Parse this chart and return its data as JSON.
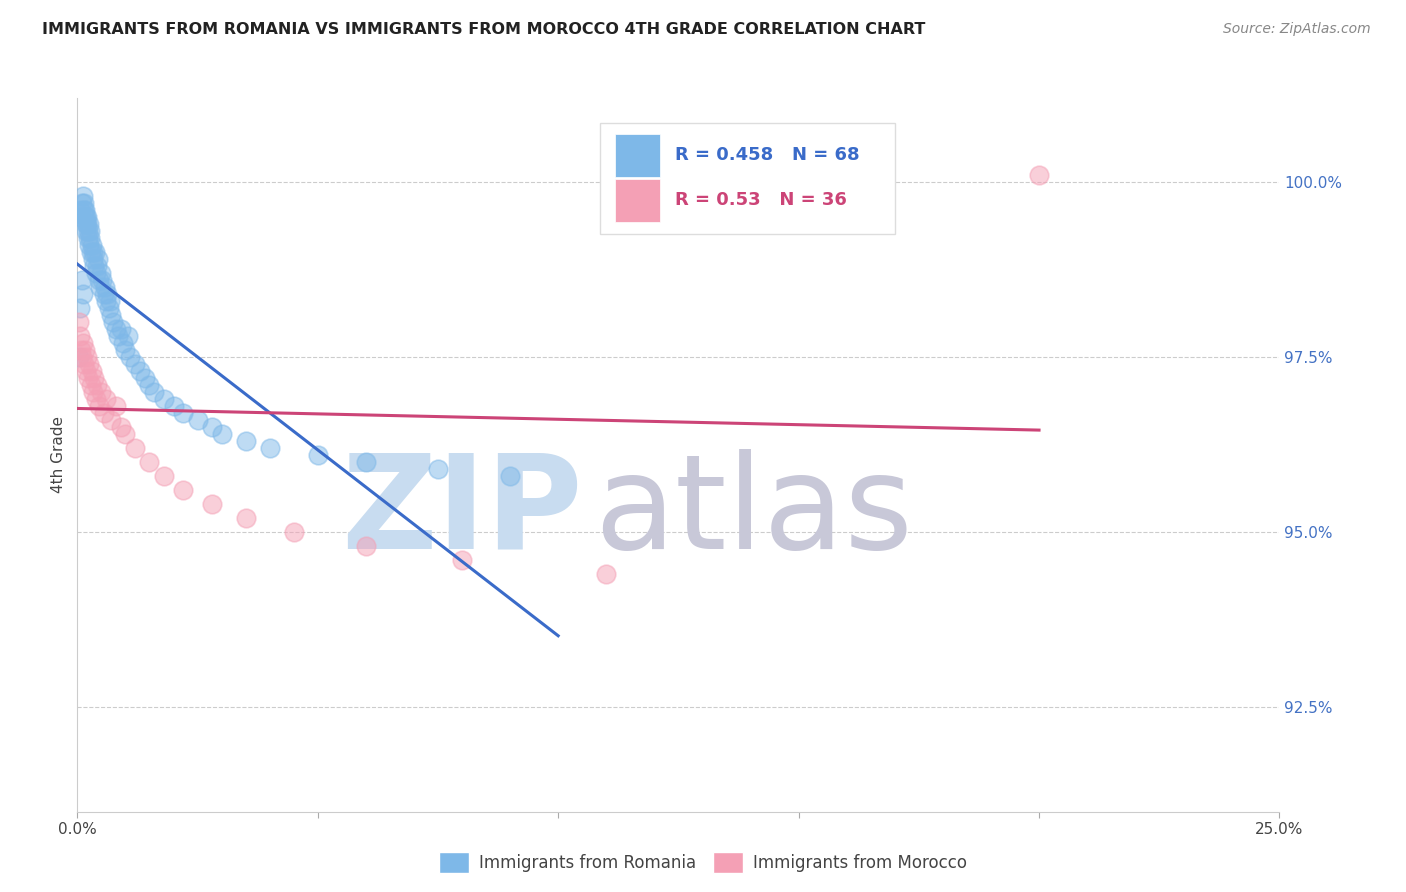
{
  "title": "IMMIGRANTS FROM ROMANIA VS IMMIGRANTS FROM MOROCCO 4TH GRADE CORRELATION CHART",
  "source": "Source: ZipAtlas.com",
  "ylabel": "4th Grade",
  "xmin": 0.0,
  "xmax": 25.0,
  "ymin": 91.0,
  "ymax": 101.2,
  "yticks": [
    92.5,
    95.0,
    97.5,
    100.0
  ],
  "ytick_labels": [
    "92.5%",
    "95.0%",
    "97.5%",
    "100.0%"
  ],
  "xticks": [
    0.0,
    5.0,
    10.0,
    15.0,
    20.0,
    25.0
  ],
  "xtick_labels": [
    "0.0%",
    "",
    "",
    "",
    "",
    "25.0%"
  ],
  "romania_color": "#7EB8E8",
  "morocco_color": "#F4A0B5",
  "romania_R": 0.458,
  "romania_N": 68,
  "morocco_R": 0.53,
  "morocco_N": 36,
  "romania_line_color": "#3A6BC9",
  "morocco_line_color": "#CC4477",
  "watermark_zip": "ZIP",
  "watermark_atlas": "atlas",
  "watermark_color_zip": "#C8DCF0",
  "watermark_color_atlas": "#C8C8D8",
  "legend_romania_color": "#3A6BC9",
  "legend_morocco_color": "#CC4477",
  "romania_x": [
    0.05,
    0.08,
    0.1,
    0.12,
    0.13,
    0.14,
    0.15,
    0.16,
    0.17,
    0.18,
    0.19,
    0.2,
    0.21,
    0.22,
    0.23,
    0.24,
    0.25,
    0.26,
    0.27,
    0.28,
    0.3,
    0.32,
    0.33,
    0.35,
    0.36,
    0.38,
    0.4,
    0.42,
    0.45,
    0.48,
    0.5,
    0.52,
    0.55,
    0.58,
    0.6,
    0.62,
    0.65,
    0.68,
    0.7,
    0.75,
    0.8,
    0.85,
    0.9,
    0.95,
    1.0,
    1.05,
    1.1,
    1.2,
    1.3,
    1.4,
    1.5,
    1.6,
    1.8,
    2.0,
    2.2,
    2.5,
    2.8,
    3.0,
    3.5,
    4.0,
    5.0,
    6.0,
    7.5,
    9.0,
    0.04,
    0.06,
    0.09,
    0.11
  ],
  "romania_y": [
    99.6,
    99.5,
    99.7,
    99.8,
    99.6,
    99.7,
    99.5,
    99.6,
    99.4,
    99.5,
    99.3,
    99.4,
    99.5,
    99.2,
    99.3,
    99.4,
    99.1,
    99.2,
    99.3,
    99.0,
    99.1,
    99.0,
    98.9,
    98.8,
    99.0,
    98.7,
    98.8,
    98.9,
    98.6,
    98.5,
    98.7,
    98.6,
    98.4,
    98.5,
    98.3,
    98.4,
    98.2,
    98.3,
    98.1,
    98.0,
    97.9,
    97.8,
    97.9,
    97.7,
    97.6,
    97.8,
    97.5,
    97.4,
    97.3,
    97.2,
    97.1,
    97.0,
    96.9,
    96.8,
    96.7,
    96.6,
    96.5,
    96.4,
    96.3,
    96.2,
    96.1,
    96.0,
    95.9,
    95.8,
    97.5,
    98.2,
    98.6,
    98.4
  ],
  "morocco_x": [
    0.04,
    0.06,
    0.08,
    0.1,
    0.12,
    0.14,
    0.16,
    0.18,
    0.2,
    0.22,
    0.25,
    0.28,
    0.3,
    0.33,
    0.35,
    0.38,
    0.4,
    0.45,
    0.5,
    0.55,
    0.6,
    0.7,
    0.8,
    0.9,
    1.0,
    1.2,
    1.5,
    1.8,
    2.2,
    2.8,
    3.5,
    4.5,
    6.0,
    8.0,
    11.0,
    20.0
  ],
  "morocco_y": [
    98.0,
    97.8,
    97.6,
    97.5,
    97.7,
    97.4,
    97.6,
    97.3,
    97.5,
    97.2,
    97.4,
    97.1,
    97.3,
    97.0,
    97.2,
    96.9,
    97.1,
    96.8,
    97.0,
    96.7,
    96.9,
    96.6,
    96.8,
    96.5,
    96.4,
    96.2,
    96.0,
    95.8,
    95.6,
    95.4,
    95.2,
    95.0,
    94.8,
    94.6,
    94.4,
    100.1
  ]
}
